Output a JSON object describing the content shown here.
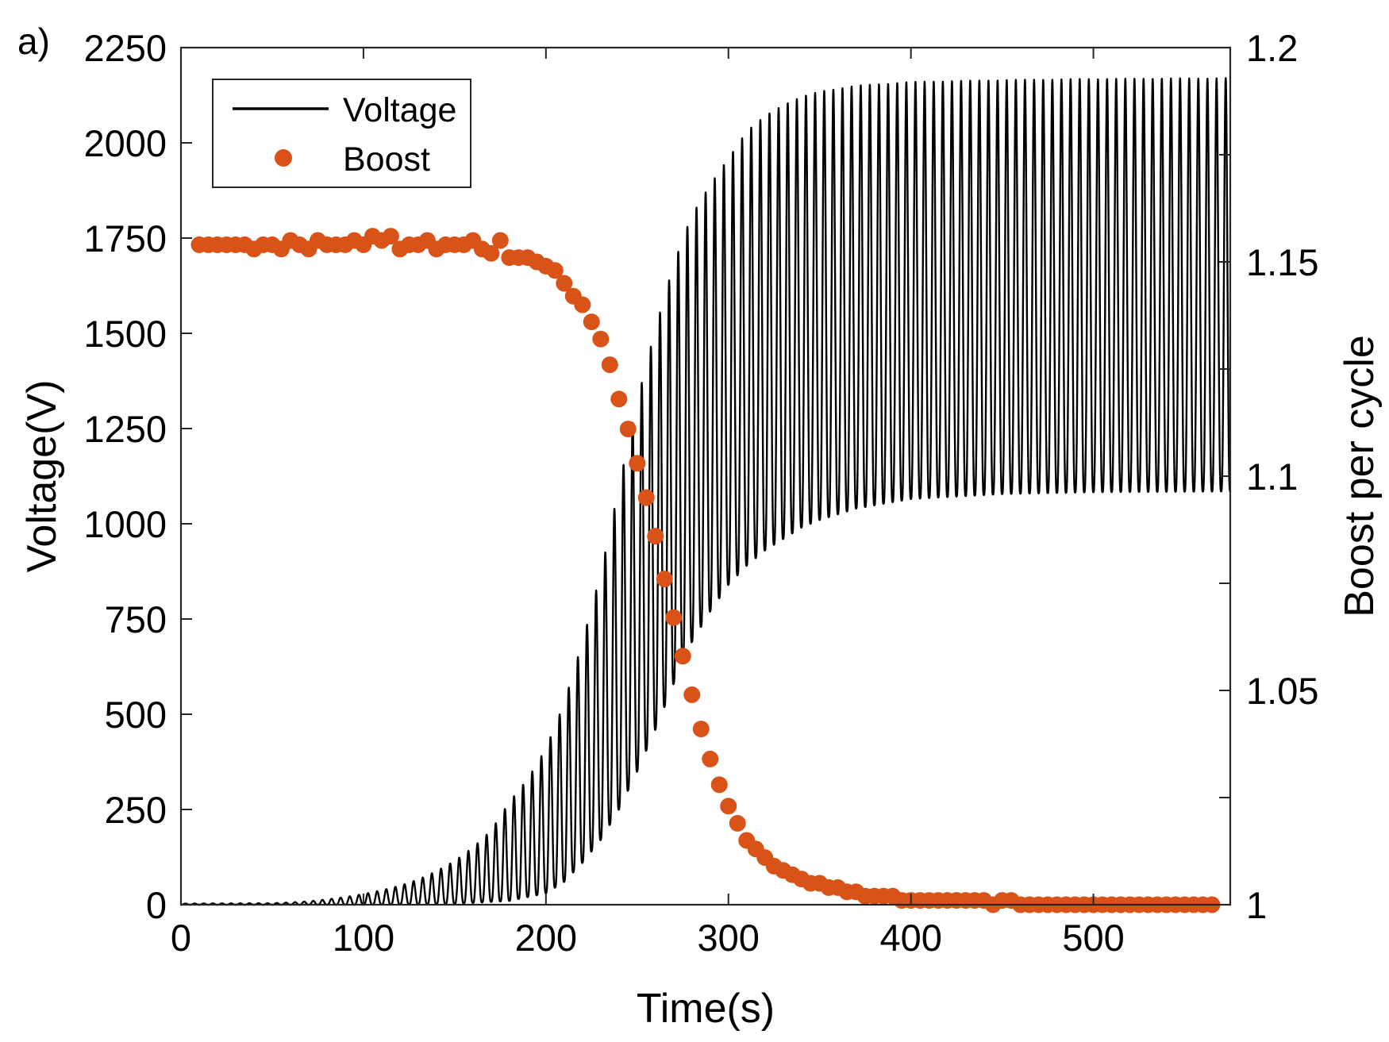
{
  "panel_label": "a)",
  "chart_data": {
    "type": "line",
    "xlabel": "Time(s)",
    "ylabel": "Voltage(V)",
    "y2label": "Boost per cycle",
    "xlim": [
      0,
      575
    ],
    "ylim": [
      0,
      2250
    ],
    "y2lim": [
      1,
      1.2
    ],
    "xticks": [
      0,
      100,
      200,
      300,
      400,
      500
    ],
    "yticks": [
      0,
      250,
      500,
      750,
      1000,
      1250,
      1500,
      1750,
      2000,
      2250
    ],
    "y2ticks": [
      "1",
      "1.05",
      "1.1",
      "1.15",
      "1.2"
    ],
    "y2tick_values": [
      1,
      1.05,
      1.1,
      1.15,
      1.2
    ],
    "legend_position": "top-left",
    "series": [
      {
        "name": "Voltage",
        "kind": "line",
        "axis": "left",
        "color": "#000000",
        "oscillation_period_s": 5,
        "peak_envelope": [
          [
            0,
            3
          ],
          [
            50,
            4
          ],
          [
            60,
            6
          ],
          [
            70,
            9
          ],
          [
            80,
            14
          ],
          [
            90,
            20
          ],
          [
            100,
            28
          ],
          [
            110,
            38
          ],
          [
            120,
            50
          ],
          [
            130,
            66
          ],
          [
            140,
            88
          ],
          [
            150,
            115
          ],
          [
            160,
            150
          ],
          [
            170,
            195
          ],
          [
            180,
            270
          ],
          [
            190,
            330
          ],
          [
            200,
            410
          ],
          [
            210,
            530
          ],
          [
            215,
            610
          ],
          [
            220,
            690
          ],
          [
            225,
            780
          ],
          [
            230,
            870
          ],
          [
            235,
            980
          ],
          [
            240,
            1100
          ],
          [
            245,
            1210
          ],
          [
            250,
            1320
          ],
          [
            255,
            1420
          ],
          [
            260,
            1510
          ],
          [
            265,
            1600
          ],
          [
            270,
            1680
          ],
          [
            275,
            1750
          ],
          [
            280,
            1810
          ],
          [
            290,
            1890
          ],
          [
            300,
            1960
          ],
          [
            310,
            2030
          ],
          [
            320,
            2070
          ],
          [
            330,
            2100
          ],
          [
            340,
            2120
          ],
          [
            350,
            2135
          ],
          [
            370,
            2150
          ],
          [
            400,
            2160
          ],
          [
            450,
            2165
          ],
          [
            500,
            2168
          ],
          [
            575,
            2170
          ]
        ],
        "trough_envelope": [
          [
            0,
            0
          ],
          [
            100,
            0
          ],
          [
            150,
            2
          ],
          [
            180,
            10
          ],
          [
            200,
            30
          ],
          [
            210,
            60
          ],
          [
            220,
            110
          ],
          [
            230,
            170
          ],
          [
            240,
            250
          ],
          [
            250,
            350
          ],
          [
            260,
            460
          ],
          [
            270,
            580
          ],
          [
            280,
            690
          ],
          [
            290,
            770
          ],
          [
            300,
            840
          ],
          [
            310,
            890
          ],
          [
            320,
            930
          ],
          [
            330,
            960
          ],
          [
            340,
            990
          ],
          [
            350,
            1010
          ],
          [
            370,
            1040
          ],
          [
            400,
            1065
          ],
          [
            450,
            1078
          ],
          [
            500,
            1083
          ],
          [
            575,
            1085
          ]
        ]
      },
      {
        "name": "Boost",
        "kind": "scatter",
        "axis": "right",
        "color": "#D95319",
        "points": [
          [
            10,
            1.154
          ],
          [
            15,
            1.154
          ],
          [
            20,
            1.154
          ],
          [
            25,
            1.154
          ],
          [
            30,
            1.154
          ],
          [
            35,
            1.154
          ],
          [
            40,
            1.153
          ],
          [
            45,
            1.154
          ],
          [
            50,
            1.154
          ],
          [
            55,
            1.153
          ],
          [
            60,
            1.155
          ],
          [
            65,
            1.154
          ],
          [
            70,
            1.153
          ],
          [
            75,
            1.155
          ],
          [
            80,
            1.154
          ],
          [
            85,
            1.154
          ],
          [
            90,
            1.154
          ],
          [
            95,
            1.155
          ],
          [
            100,
            1.154
          ],
          [
            105,
            1.156
          ],
          [
            110,
            1.155
          ],
          [
            115,
            1.156
          ],
          [
            120,
            1.153
          ],
          [
            125,
            1.154
          ],
          [
            130,
            1.154
          ],
          [
            135,
            1.155
          ],
          [
            140,
            1.153
          ],
          [
            145,
            1.154
          ],
          [
            150,
            1.154
          ],
          [
            155,
            1.154
          ],
          [
            160,
            1.155
          ],
          [
            165,
            1.153
          ],
          [
            170,
            1.152
          ],
          [
            175,
            1.155
          ],
          [
            180,
            1.151
          ],
          [
            185,
            1.151
          ],
          [
            190,
            1.151
          ],
          [
            195,
            1.15
          ],
          [
            200,
            1.149
          ],
          [
            205,
            1.148
          ],
          [
            210,
            1.145
          ],
          [
            215,
            1.142
          ],
          [
            220,
            1.14
          ],
          [
            225,
            1.136
          ],
          [
            230,
            1.132
          ],
          [
            235,
            1.126
          ],
          [
            240,
            1.118
          ],
          [
            245,
            1.111
          ],
          [
            250,
            1.103
          ],
          [
            255,
            1.095
          ],
          [
            260,
            1.086
          ],
          [
            265,
            1.076
          ],
          [
            270,
            1.067
          ],
          [
            275,
            1.058
          ],
          [
            280,
            1.049
          ],
          [
            285,
            1.041
          ],
          [
            290,
            1.034
          ],
          [
            295,
            1.028
          ],
          [
            300,
            1.023
          ],
          [
            305,
            1.019
          ],
          [
            310,
            1.015
          ],
          [
            315,
            1.013
          ],
          [
            320,
            1.011
          ],
          [
            325,
            1.009
          ],
          [
            330,
            1.008
          ],
          [
            335,
            1.007
          ],
          [
            340,
            1.006
          ],
          [
            345,
            1.005
          ],
          [
            350,
            1.005
          ],
          [
            355,
            1.004
          ],
          [
            360,
            1.004
          ],
          [
            365,
            1.003
          ],
          [
            370,
            1.003
          ],
          [
            375,
            1.002
          ],
          [
            380,
            1.002
          ],
          [
            385,
            1.002
          ],
          [
            390,
            1.002
          ],
          [
            395,
            1.001
          ],
          [
            400,
            1.001
          ],
          [
            405,
            1.001
          ],
          [
            410,
            1.001
          ],
          [
            415,
            1.001
          ],
          [
            420,
            1.001
          ],
          [
            425,
            1.001
          ],
          [
            430,
            1.001
          ],
          [
            435,
            1.001
          ],
          [
            440,
            1.001
          ],
          [
            445,
            1.0
          ],
          [
            450,
            1.001
          ],
          [
            455,
            1.001
          ],
          [
            460,
            1.0
          ],
          [
            465,
            1.0
          ],
          [
            470,
            1.0
          ],
          [
            475,
            1.0
          ],
          [
            480,
            1.0
          ],
          [
            485,
            1.0
          ],
          [
            490,
            1.0
          ],
          [
            495,
            1.0
          ],
          [
            500,
            1.0
          ],
          [
            505,
            1.0
          ],
          [
            510,
            1.0
          ],
          [
            515,
            1.0
          ],
          [
            520,
            1.0
          ],
          [
            525,
            1.0
          ],
          [
            530,
            1.0
          ],
          [
            535,
            1.0
          ],
          [
            540,
            1.0
          ],
          [
            545,
            1.0
          ],
          [
            550,
            1.0
          ],
          [
            555,
            1.0
          ],
          [
            560,
            1.0
          ],
          [
            565,
            1.0
          ]
        ]
      }
    ]
  }
}
